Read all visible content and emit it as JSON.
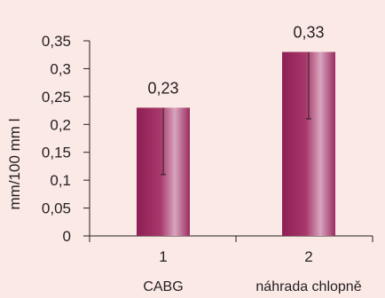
{
  "colors": {
    "background": "#fbe9e6",
    "axis": "#231f20",
    "bar_edge": "#8e1f55",
    "bar_light": "#d8a5be",
    "bar_mid": "#b24c7c"
  },
  "chart_data": {
    "type": "bar",
    "title": "",
    "xlabel": "",
    "ylabel": "mm/100 mm l",
    "ylim": [
      0,
      0.35
    ],
    "yticks": [
      "0",
      "0,05",
      "0,1",
      "0,15",
      "0,2",
      "0,25",
      "0,3",
      "0,35"
    ],
    "grid": false,
    "legend": "none",
    "categories": [
      "1",
      "2"
    ],
    "category_names": [
      "CABG",
      "náhrada chlopně"
    ],
    "values": [
      0.23,
      0.33
    ],
    "value_labels": [
      "0,23",
      "0,33"
    ],
    "error_low": [
      0.11,
      0.21
    ],
    "error_high": [
      0.23,
      0.33
    ]
  }
}
